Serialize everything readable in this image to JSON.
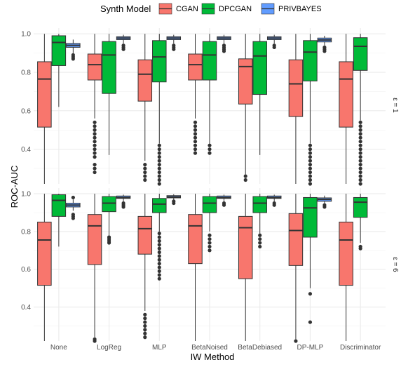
{
  "chart_data": {
    "type": "boxplot",
    "xlabel": "IW Method",
    "ylabel": "ROC-AUC",
    "legend": {
      "title": "Synth Model",
      "position": "top",
      "entries": [
        {
          "name": "CGAN",
          "color": "#F8766D"
        },
        {
          "name": "DPCGAN",
          "color": "#00BA38"
        },
        {
          "name": "PRIVBAYES",
          "color": "#619CFF"
        }
      ]
    },
    "categories": [
      "None",
      "LogReg",
      "MLP",
      "BetaNoised",
      "BetaDebiased",
      "DP-MLP",
      "Discriminator"
    ],
    "ylim": [
      0.22,
      1.03
    ],
    "yticks": [
      0.4,
      0.6,
      0.8,
      1.0
    ],
    "ytick_labels": [
      "0.4",
      "0.6",
      "0.8",
      "1.0"
    ],
    "grid": true,
    "panels": [
      {
        "label": "ε = 1",
        "series": [
          {
            "name": "CGAN",
            "boxes": [
              {
                "q1": 0.515,
                "median": 0.765,
                "q3": 0.855,
                "whisker_low": 0.22,
                "whisker_high": 1.0,
                "outliers": []
              },
              {
                "q1": 0.76,
                "median": 0.84,
                "q3": 0.895,
                "whisker_low": 0.56,
                "whisker_high": 1.0,
                "outliers": [
                  0.28,
                  0.3,
                  0.32,
                  0.36,
                  0.38,
                  0.4,
                  0.42,
                  0.44,
                  0.46,
                  0.48,
                  0.5,
                  0.52,
                  0.54
                ]
              },
              {
                "q1": 0.65,
                "median": 0.79,
                "q3": 0.865,
                "whisker_low": 0.34,
                "whisker_high": 1.0,
                "outliers": [
                  0.24,
                  0.26,
                  0.28,
                  0.3,
                  0.32
                ]
              },
              {
                "q1": 0.76,
                "median": 0.84,
                "q3": 0.895,
                "whisker_low": 0.56,
                "whisker_high": 1.0,
                "outliers": [
                  0.38,
                  0.4,
                  0.42,
                  0.44,
                  0.46,
                  0.48,
                  0.5,
                  0.52,
                  0.54
                ]
              },
              {
                "q1": 0.635,
                "median": 0.83,
                "q3": 0.87,
                "whisker_low": 0.27,
                "whisker_high": 1.0,
                "outliers": [
                  0.24,
                  0.26
                ]
              },
              {
                "q1": 0.57,
                "median": 0.74,
                "q3": 0.865,
                "whisker_low": 0.22,
                "whisker_high": 1.0,
                "outliers": []
              },
              {
                "q1": 0.515,
                "median": 0.765,
                "q3": 0.855,
                "whisker_low": 0.22,
                "whisker_high": 1.0,
                "outliers": []
              }
            ]
          },
          {
            "name": "DPCGAN",
            "boxes": [
              {
                "q1": 0.835,
                "median": 0.955,
                "q3": 0.99,
                "whisker_low": 0.62,
                "whisker_high": 1.0,
                "outliers": []
              },
              {
                "q1": 0.69,
                "median": 0.89,
                "q3": 0.96,
                "whisker_low": 0.37,
                "whisker_high": 1.0,
                "outliers": []
              },
              {
                "q1": 0.75,
                "median": 0.88,
                "q3": 0.965,
                "whisker_low": 0.43,
                "whisker_high": 1.0,
                "outliers": [
                  0.22,
                  0.24,
                  0.26,
                  0.28,
                  0.3,
                  0.32,
                  0.34,
                  0.36,
                  0.38,
                  0.4,
                  0.42
                ]
              },
              {
                "q1": 0.76,
                "median": 0.89,
                "q3": 0.96,
                "whisker_low": 0.42,
                "whisker_high": 1.0,
                "outliers": [
                  0.38,
                  0.4,
                  0.42
                ]
              },
              {
                "q1": 0.685,
                "median": 0.885,
                "q3": 0.96,
                "whisker_low": 0.37,
                "whisker_high": 1.0,
                "outliers": []
              },
              {
                "q1": 0.755,
                "median": 0.905,
                "q3": 0.965,
                "whisker_low": 0.43,
                "whisker_high": 1.0,
                "outliers": [
                  0.22,
                  0.24,
                  0.26,
                  0.28,
                  0.3,
                  0.32,
                  0.34,
                  0.36,
                  0.38,
                  0.4,
                  0.42
                ]
              },
              {
                "q1": 0.81,
                "median": 0.935,
                "q3": 0.98,
                "whisker_low": 0.55,
                "whisker_high": 1.0,
                "outliers": [
                  0.22,
                  0.24,
                  0.26,
                  0.28,
                  0.3,
                  0.32,
                  0.34,
                  0.36,
                  0.38,
                  0.4,
                  0.42,
                  0.44,
                  0.46,
                  0.48,
                  0.5,
                  0.52,
                  0.54
                ]
              }
            ]
          },
          {
            "name": "PRIVBAYES",
            "boxes": [
              {
                "q1": 0.93,
                "median": 0.94,
                "q3": 0.95,
                "whisker_low": 0.9,
                "whisker_high": 0.97,
                "outliers": [
                  0.87,
                  0.88,
                  0.89
                ]
              },
              {
                "q1": 0.97,
                "median": 0.978,
                "q3": 0.985,
                "whisker_low": 0.95,
                "whisker_high": 0.995,
                "outliers": [
                  0.92,
                  0.93,
                  0.94
                ]
              },
              {
                "q1": 0.97,
                "median": 0.978,
                "q3": 0.985,
                "whisker_low": 0.95,
                "whisker_high": 0.995,
                "outliers": [
                  0.92,
                  0.93,
                  0.94
                ]
              },
              {
                "q1": 0.97,
                "median": 0.978,
                "q3": 0.985,
                "whisker_low": 0.95,
                "whisker_high": 0.995,
                "outliers": [
                  0.91,
                  0.92,
                  0.93,
                  0.94
                ]
              },
              {
                "q1": 0.97,
                "median": 0.978,
                "q3": 0.985,
                "whisker_low": 0.95,
                "whisker_high": 0.995,
                "outliers": [
                  0.93,
                  0.94
                ]
              },
              {
                "q1": 0.958,
                "median": 0.968,
                "q3": 0.978,
                "whisker_low": 0.94,
                "whisker_high": 0.99,
                "outliers": [
                  0.91,
                  0.92,
                  0.93
                ]
              },
              null
            ]
          }
        ]
      },
      {
        "label": "ε = 6",
        "series": [
          {
            "name": "CGAN",
            "boxes": [
              {
                "q1": 0.515,
                "median": 0.755,
                "q3": 0.85,
                "whisker_low": 0.22,
                "whisker_high": 1.0,
                "outliers": []
              },
              {
                "q1": 0.625,
                "median": 0.83,
                "q3": 0.89,
                "whisker_low": 0.24,
                "whisker_high": 1.0,
                "outliers": [
                  0.22,
                  0.23
                ]
              },
              {
                "q1": 0.68,
                "median": 0.815,
                "q3": 0.88,
                "whisker_low": 0.38,
                "whisker_high": 1.0,
                "outliers": [
                  0.24,
                  0.26,
                  0.28,
                  0.3,
                  0.32,
                  0.34,
                  0.36
                ]
              },
              {
                "q1": 0.63,
                "median": 0.83,
                "q3": 0.89,
                "whisker_low": 0.22,
                "whisker_high": 1.0,
                "outliers": []
              },
              {
                "q1": 0.55,
                "median": 0.82,
                "q3": 0.88,
                "whisker_low": 0.22,
                "whisker_high": 1.0,
                "outliers": []
              },
              {
                "q1": 0.62,
                "median": 0.805,
                "q3": 0.895,
                "whisker_low": 0.23,
                "whisker_high": 1.0,
                "outliers": [
                  0.22
                ]
              },
              {
                "q1": 0.515,
                "median": 0.755,
                "q3": 0.85,
                "whisker_low": 0.22,
                "whisker_high": 1.0,
                "outliers": []
              }
            ]
          },
          {
            "name": "DPCGAN",
            "boxes": [
              {
                "q1": 0.88,
                "median": 0.965,
                "q3": 0.995,
                "whisker_low": 0.72,
                "whisker_high": 1.0,
                "outliers": []
              },
              {
                "q1": 0.905,
                "median": 0.95,
                "q3": 0.985,
                "whisker_low": 0.78,
                "whisker_high": 1.0,
                "outliers": [
                  0.74,
                  0.75,
                  0.76,
                  0.77
                ]
              },
              {
                "q1": 0.9,
                "median": 0.945,
                "q3": 0.975,
                "whisker_low": 0.8,
                "whisker_high": 1.0,
                "outliers": [
                  0.55,
                  0.57,
                  0.59,
                  0.61,
                  0.63,
                  0.65,
                  0.67,
                  0.69,
                  0.71,
                  0.73,
                  0.75,
                  0.77,
                  0.79
                ]
              },
              {
                "q1": 0.9,
                "median": 0.95,
                "q3": 0.985,
                "whisker_low": 0.8,
                "whisker_high": 1.0,
                "outliers": [
                  0.7,
                  0.72,
                  0.74,
                  0.76,
                  0.78
                ]
              },
              {
                "q1": 0.9,
                "median": 0.95,
                "q3": 0.985,
                "whisker_low": 0.79,
                "whisker_high": 1.0,
                "outliers": [
                  0.72,
                  0.74,
                  0.76,
                  0.78
                ]
              },
              {
                "q1": 0.77,
                "median": 0.925,
                "q3": 0.98,
                "whisker_low": 0.5,
                "whisker_high": 1.0,
                "outliers": [
                  0.32,
                  0.47
                ]
              },
              {
                "q1": 0.875,
                "median": 0.955,
                "q3": 0.98,
                "whisker_low": 0.74,
                "whisker_high": 1.0,
                "outliers": [
                  0.71,
                  0.72
                ]
              }
            ]
          },
          {
            "name": "PRIVBAYES",
            "boxes": [
              {
                "q1": 0.93,
                "median": 0.94,
                "q3": 0.95,
                "whisker_low": 0.91,
                "whisker_high": 0.97,
                "outliers": [
                  0.87,
                  0.88,
                  0.89,
                  0.98
                ]
              },
              {
                "q1": 0.975,
                "median": 0.98,
                "q3": 0.988,
                "whisker_low": 0.96,
                "whisker_high": 0.995,
                "outliers": [
                  0.93,
                  0.94,
                  0.95
                ]
              },
              {
                "q1": 0.978,
                "median": 0.983,
                "q3": 0.99,
                "whisker_low": 0.965,
                "whisker_high": 0.997,
                "outliers": [
                  0.95,
                  0.96
                ]
              },
              {
                "q1": 0.975,
                "median": 0.98,
                "q3": 0.988,
                "whisker_low": 0.96,
                "whisker_high": 0.995,
                "outliers": [
                  0.94,
                  0.95
                ]
              },
              {
                "q1": 0.975,
                "median": 0.98,
                "q3": 0.988,
                "whisker_low": 0.96,
                "whisker_high": 0.995,
                "outliers": [
                  0.94,
                  0.95
                ]
              },
              {
                "q1": 0.96,
                "median": 0.97,
                "q3": 0.978,
                "whisker_low": 0.945,
                "whisker_high": 0.99,
                "outliers": [
                  0.93,
                  0.94
                ]
              },
              null
            ]
          }
        ]
      }
    ]
  }
}
